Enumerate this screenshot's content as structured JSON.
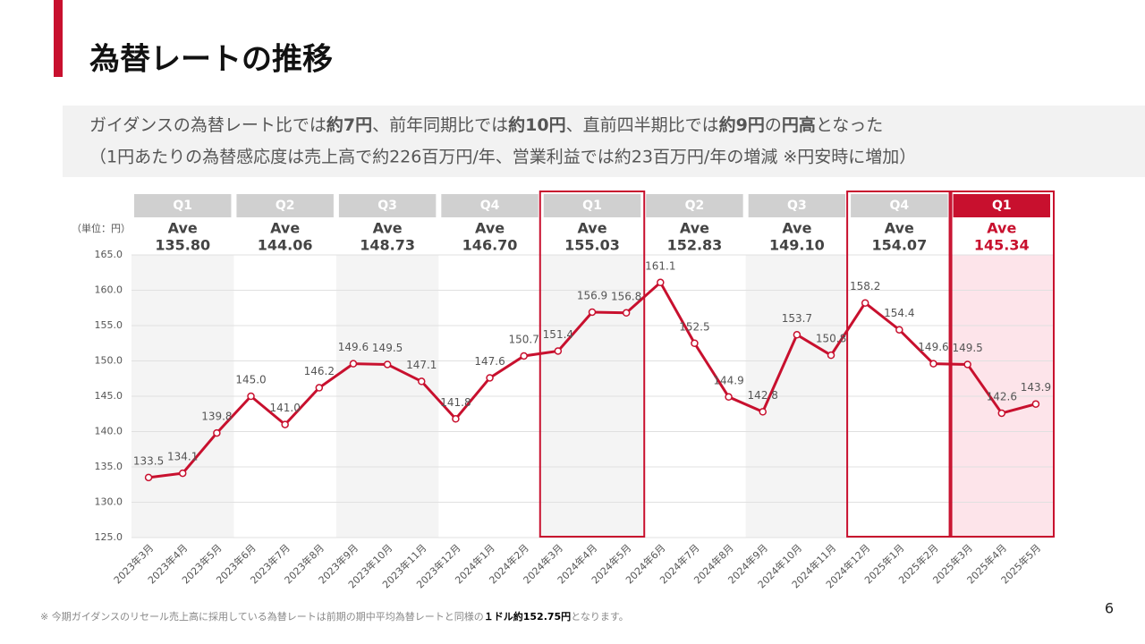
{
  "header": {
    "title": "為替レートの推移"
  },
  "subtitle": {
    "line1": [
      {
        "text": "ガイダンスの為替レート比では",
        "bold": false
      },
      {
        "text": "約7円",
        "bold": true
      },
      {
        "text": "、前年同期比では",
        "bold": false
      },
      {
        "text": "約10円",
        "bold": true
      },
      {
        "text": "、直前四半期比では",
        "bold": false
      },
      {
        "text": "約9円",
        "bold": true
      },
      {
        "text": "の",
        "bold": false
      },
      {
        "text": "円高",
        "bold": true
      },
      {
        "text": "となった",
        "bold": false
      }
    ],
    "line2": "（1円あたりの為替感応度は売上高で約226百万円/年、営業利益では約23百万円/年の増減 ※円安時に増加）"
  },
  "chart_data": {
    "type": "line",
    "unit_label": "（単位：円）",
    "categories": [
      "2023年3月",
      "2023年4月",
      "2023年5月",
      "2023年6月",
      "2023年7月",
      "2023年8月",
      "2023年9月",
      "2023年10月",
      "2023年11月",
      "2023年12月",
      "2024年1月",
      "2024年2月",
      "2024年3月",
      "2024年4月",
      "2024年5月",
      "2024年6月",
      "2024年7月",
      "2024年8月",
      "2024年9月",
      "2024年10月",
      "2024年11月",
      "2024年12月",
      "2025年1月",
      "2025年2月",
      "2025年3月",
      "2025年4月",
      "2025年5月"
    ],
    "values": [
      133.5,
      134.1,
      139.8,
      145.0,
      141.0,
      146.2,
      149.6,
      149.5,
      147.1,
      141.8,
      147.6,
      150.7,
      151.4,
      156.9,
      156.8,
      161.1,
      152.5,
      144.9,
      142.8,
      153.7,
      150.8,
      158.2,
      154.4,
      149.6,
      149.5,
      142.6,
      143.9
    ],
    "value_labels": [
      "133.5",
      "134.1",
      "139.8",
      "145.0",
      "141.0",
      "146.2",
      "149.6",
      "149.5",
      "147.1",
      "141.8",
      "147.6",
      "150.7",
      "151.4",
      "156.9",
      "156.8",
      "161.1",
      "152.5",
      "144.9",
      "142.8",
      "153.7",
      "150.8",
      "158.2",
      "154.4",
      "149.6",
      "149.5",
      "142.6",
      "143.9"
    ],
    "color": "#c8102e",
    "ylim": [
      125,
      165
    ],
    "yticks": [
      {
        "value": 125,
        "label": "125.0"
      },
      {
        "value": 130,
        "label": "130.0"
      },
      {
        "value": 135,
        "label": "135.0"
      },
      {
        "value": 140,
        "label": "140.0"
      },
      {
        "value": 145,
        "label": "145.0"
      },
      {
        "value": 150,
        "label": "150.0"
      },
      {
        "value": 155,
        "label": "155.0"
      },
      {
        "value": 160,
        "label": "160.0"
      },
      {
        "value": 165,
        "label": "165.0"
      }
    ],
    "grid": true,
    "quarters": [
      {
        "name": "Q1",
        "label": "Ave",
        "average": 135.8,
        "average_label": "135.80",
        "boxed": false,
        "current": false
      },
      {
        "name": "Q2",
        "label": "Ave",
        "average": 144.06,
        "average_label": "144.06",
        "boxed": false,
        "current": false
      },
      {
        "name": "Q3",
        "label": "Ave",
        "average": 148.73,
        "average_label": "148.73",
        "boxed": false,
        "current": false
      },
      {
        "name": "Q4",
        "label": "Ave",
        "average": 146.7,
        "average_label": "146.70",
        "boxed": false,
        "current": false
      },
      {
        "name": "Q1",
        "label": "Ave",
        "average": 155.03,
        "average_label": "155.03",
        "boxed": true,
        "current": false
      },
      {
        "name": "Q2",
        "label": "Ave",
        "average": 152.83,
        "average_label": "152.83",
        "boxed": false,
        "current": false
      },
      {
        "name": "Q3",
        "label": "Ave",
        "average": 149.1,
        "average_label": "149.10",
        "boxed": false,
        "current": false
      },
      {
        "name": "Q4",
        "label": "Ave",
        "average": 154.07,
        "average_label": "154.07",
        "boxed": true,
        "current": false
      },
      {
        "name": "Q1",
        "label": "Ave",
        "average": 145.34,
        "average_label": "145.34",
        "boxed": true,
        "current": true
      }
    ]
  },
  "footnote": [
    {
      "text": "※ 今期ガイダンスのリセール売上高に採用している為替レートは前期の期中平均為替レートと同様の",
      "bold": false
    },
    {
      "text": "１ドル約152.75円",
      "bold": true
    },
    {
      "text": "となります。",
      "bold": false
    }
  ],
  "page_number": "6"
}
